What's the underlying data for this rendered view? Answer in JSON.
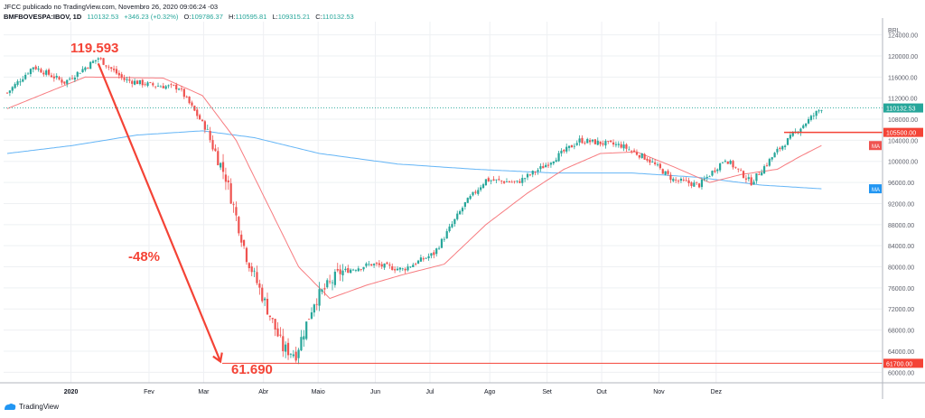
{
  "header": {
    "publisher_line": "JFCC publicado no TradingView.com, Novembro 26, 2020 09:06:24 -03",
    "symbol": "BMFBOVESPA:IBOV, 1D",
    "last": "110132.53",
    "change": "+346.23 (+0.32%)",
    "open_label": "O:",
    "open_value": "109786.37",
    "high_label": "H:",
    "high_value": "110595.81",
    "low_label": "L:",
    "low_value": "109315.21",
    "close_label": "C:",
    "close_value": "110132.53"
  },
  "footer": {
    "brand": "TradingView"
  },
  "colors": {
    "up": "#26a69a",
    "down": "#ef5350",
    "ma_short": "#f77c80",
    "ma_long": "#64b5f6",
    "annotation": "#f44336",
    "ma_short_badge": "#ef5350",
    "ma_long_badge": "#2196f3"
  },
  "chart_data": {
    "type": "candlestick",
    "currency_label": "BRL",
    "x_months": [
      "2020",
      "Fev",
      "Mar",
      "Abr",
      "Maio",
      "Jun",
      "Jul",
      "Ago",
      "Set",
      "Out",
      "Nov",
      "Dez"
    ],
    "y_ticks": [
      60000,
      64000,
      68000,
      72000,
      76000,
      80000,
      84000,
      88000,
      92000,
      96000,
      100000,
      104000,
      108000,
      112000,
      116000,
      120000,
      124000
    ],
    "ylim": [
      58000,
      126500
    ],
    "annotations": {
      "peak_label": "119.593",
      "trough_label": "61.690",
      "drop_label": "-48%",
      "peak_value": 119593,
      "trough_value": 61690
    },
    "price_labels": {
      "last": "110132.53",
      "resistance": "105500.00",
      "support": "61700.00",
      "ma_short_badge": "MA",
      "ma_long_badge": "MA"
    },
    "levels": {
      "last": 110132.53,
      "resistance": 105500,
      "support": 61700
    },
    "key_prices": [
      {
        "day": 0,
        "close": 113000
      },
      {
        "day": 10,
        "close": 118000
      },
      {
        "day": 22,
        "close": 115000
      },
      {
        "day": 35,
        "close": 119593
      },
      {
        "day": 45,
        "close": 115500
      },
      {
        "day": 55,
        "close": 114500
      },
      {
        "day": 66,
        "close": 114000
      },
      {
        "day": 76,
        "close": 106500
      },
      {
        "day": 84,
        "close": 97000
      },
      {
        "day": 92,
        "close": 82000
      },
      {
        "day": 100,
        "close": 72000
      },
      {
        "day": 106,
        "close": 64500
      },
      {
        "day": 111,
        "close": 63500
      },
      {
        "day": 118,
        "close": 73500
      },
      {
        "day": 128,
        "close": 79000
      },
      {
        "day": 140,
        "close": 80500
      },
      {
        "day": 152,
        "close": 79500
      },
      {
        "day": 164,
        "close": 82500
      },
      {
        "day": 176,
        "close": 92000
      },
      {
        "day": 184,
        "close": 96500
      },
      {
        "day": 196,
        "close": 96000
      },
      {
        "day": 206,
        "close": 99000
      },
      {
        "day": 220,
        "close": 104000
      },
      {
        "day": 236,
        "close": 103000
      },
      {
        "day": 246,
        "close": 100500
      },
      {
        "day": 256,
        "close": 96500
      },
      {
        "day": 266,
        "close": 95500
      },
      {
        "day": 276,
        "close": 100500
      },
      {
        "day": 286,
        "close": 96000
      },
      {
        "day": 296,
        "close": 102000
      },
      {
        "day": 304,
        "close": 106000
      },
      {
        "day": 313,
        "close": 110132
      }
    ],
    "ma_short_anchor": [
      {
        "day": 0,
        "v": 110000
      },
      {
        "day": 30,
        "v": 116000
      },
      {
        "day": 60,
        "v": 115800
      },
      {
        "day": 75,
        "v": 112500
      },
      {
        "day": 88,
        "v": 104000
      },
      {
        "day": 100,
        "v": 92000
      },
      {
        "day": 112,
        "v": 80000
      },
      {
        "day": 124,
        "v": 74000
      },
      {
        "day": 138,
        "v": 76500
      },
      {
        "day": 152,
        "v": 78500
      },
      {
        "day": 168,
        "v": 80500
      },
      {
        "day": 184,
        "v": 88000
      },
      {
        "day": 200,
        "v": 94000
      },
      {
        "day": 214,
        "v": 98500
      },
      {
        "day": 228,
        "v": 101500
      },
      {
        "day": 242,
        "v": 101800
      },
      {
        "day": 256,
        "v": 99000
      },
      {
        "day": 270,
        "v": 96000
      },
      {
        "day": 282,
        "v": 97500
      },
      {
        "day": 296,
        "v": 98500
      },
      {
        "day": 305,
        "v": 101000
      },
      {
        "day": 313,
        "v": 103000
      }
    ],
    "ma_long_anchor": [
      {
        "day": 0,
        "v": 101500
      },
      {
        "day": 25,
        "v": 103000
      },
      {
        "day": 50,
        "v": 105000
      },
      {
        "day": 75,
        "v": 105800
      },
      {
        "day": 95,
        "v": 104500
      },
      {
        "day": 120,
        "v": 101500
      },
      {
        "day": 150,
        "v": 99500
      },
      {
        "day": 180,
        "v": 98500
      },
      {
        "day": 210,
        "v": 97800
      },
      {
        "day": 240,
        "v": 97800
      },
      {
        "day": 265,
        "v": 97000
      },
      {
        "day": 290,
        "v": 95500
      },
      {
        "day": 313,
        "v": 94800
      }
    ]
  }
}
